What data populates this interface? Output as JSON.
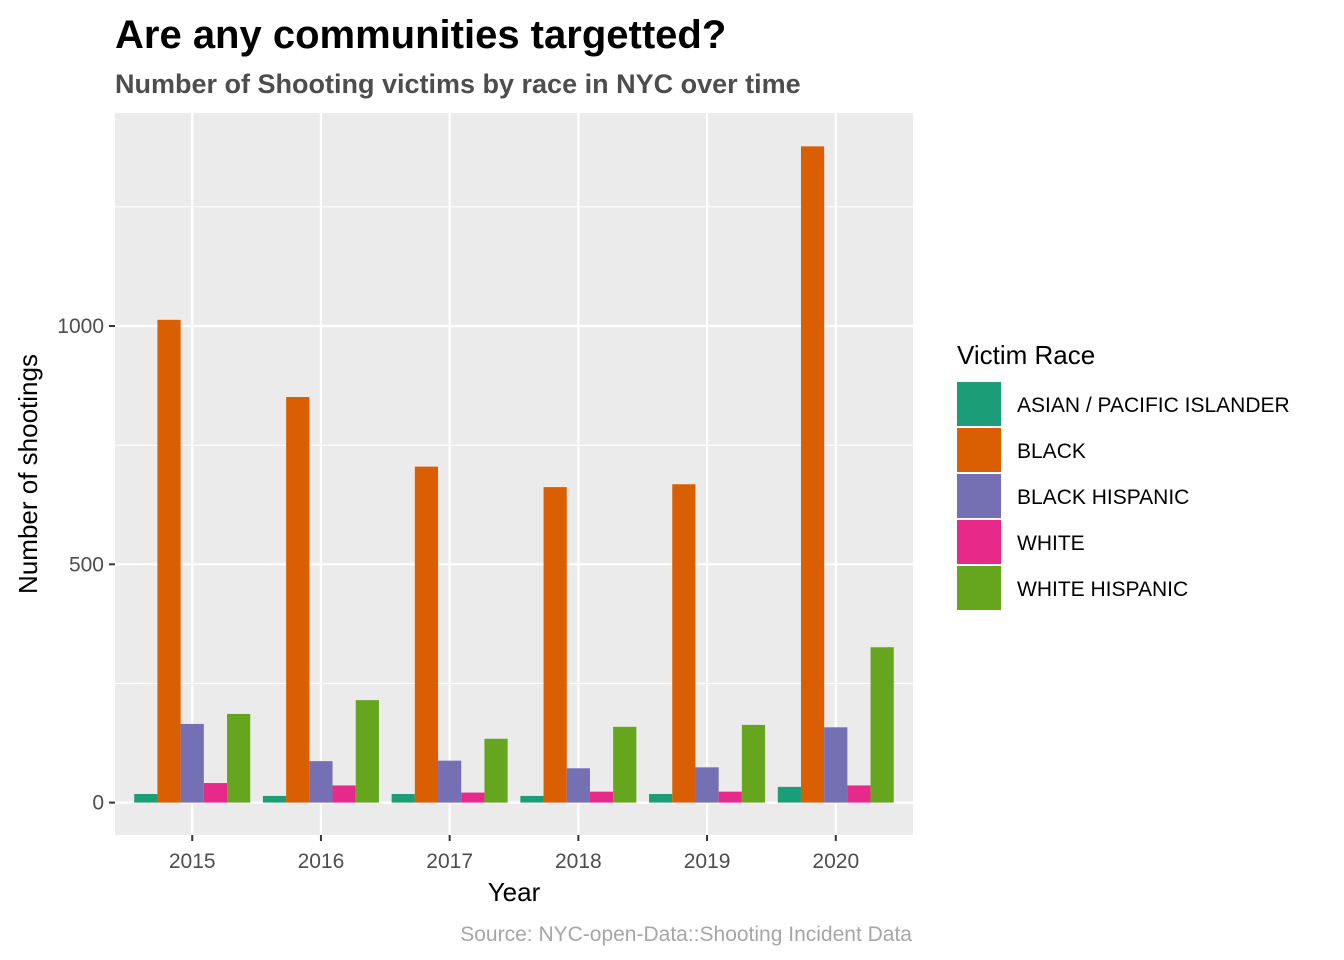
{
  "chart_data": {
    "type": "bar",
    "title": "Are any communities targetted?",
    "subtitle": "Number of Shooting victims by race in NYC over time",
    "xlabel": "Year",
    "ylabel": "Number of shootings",
    "caption": "Source: NYC-open-Data::Shooting Incident Data",
    "categories": [
      "2015",
      "2016",
      "2017",
      "2018",
      "2019",
      "2020"
    ],
    "ylim": [
      -68,
      1447
    ],
    "yticks": [
      0,
      500,
      1000
    ],
    "ytick_labels": [
      "0",
      "500",
      "1000"
    ],
    "grid": true,
    "legend": {
      "title": "Victim Race",
      "position": "right"
    },
    "series": [
      {
        "name": "ASIAN / PACIFIC ISLANDER",
        "color": "#1B9E77",
        "values": [
          18,
          14,
          18,
          14,
          18,
          33
        ]
      },
      {
        "name": "BLACK",
        "color": "#D95F02",
        "values": [
          1013,
          851,
          705,
          662,
          668,
          1377
        ]
      },
      {
        "name": "BLACK HISPANIC",
        "color": "#7570B3",
        "values": [
          165,
          87,
          88,
          72,
          74,
          158
        ]
      },
      {
        "name": "WHITE",
        "color": "#E7298A",
        "values": [
          41,
          36,
          21,
          23,
          23,
          36
        ]
      },
      {
        "name": "WHITE HISPANIC",
        "color": "#66A61E",
        "values": [
          186,
          215,
          134,
          159,
          163,
          326
        ]
      }
    ]
  }
}
